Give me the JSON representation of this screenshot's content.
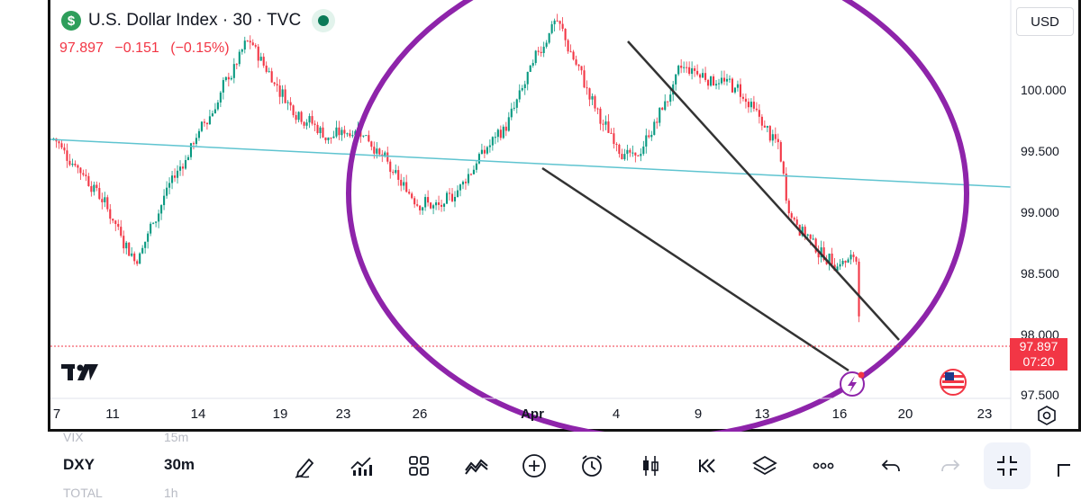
{
  "header": {
    "symbol_icon": "$",
    "title": "U.S. Dollar Index · 30 · TVC",
    "market_status_icon": "live-dot-icon",
    "last_price": "97.897",
    "change": "−0.151",
    "change_pct": "(−0.15%)"
  },
  "currency_button": "USD",
  "y_axis": {
    "ticks": [
      "100.000",
      "99.500",
      "99.000",
      "98.500",
      "98.000",
      "97.500"
    ],
    "ticks_values": [
      100.0,
      99.5,
      99.0,
      98.5,
      98.0,
      97.5
    ]
  },
  "x_axis": {
    "ticks": [
      "7",
      "11",
      "14",
      "19",
      "23",
      "26",
      "Apr",
      "4",
      "9",
      "13",
      "16",
      "20",
      "23"
    ]
  },
  "price_tag": {
    "price": "97.897",
    "countdown": "07:20"
  },
  "colors": {
    "up": "#089981",
    "down": "#f23645",
    "hline": "#5fc4d0",
    "circle": "#8e24aa",
    "trend": "#333333"
  },
  "bottom": {
    "faint_top": [
      "VIX",
      "15m"
    ],
    "symbol": "DXY",
    "timeframe": "30m",
    "faint_bottom": [
      "TOTAL",
      "1h"
    ],
    "tools": [
      "pen-icon",
      "indicators-icon",
      "layout-grid-icon",
      "drawings-icon",
      "add-icon",
      "alert-clock-icon",
      "candle-type-icon",
      "replay-icon",
      "layers-icon",
      "more-icon",
      "undo-icon",
      "redo-icon",
      "fullscreen-icon",
      "crop-icon"
    ]
  },
  "chart_data": {
    "type": "candlestick",
    "series": "U.S. Dollar Index (DXY) 30m",
    "ylim": [
      97.35,
      100.8
    ],
    "last": 97.897,
    "trend_levels": [
      [
        0,
        99.6
      ],
      [
        0.05,
        99.2
      ],
      [
        0.1,
        98.6
      ],
      [
        0.14,
        99.2
      ],
      [
        0.2,
        99.9
      ],
      [
        0.24,
        100.4
      ],
      [
        0.29,
        99.9
      ],
      [
        0.34,
        99.6
      ],
      [
        0.38,
        99.7
      ],
      [
        0.43,
        99.2
      ],
      [
        0.48,
        99.0
      ],
      [
        0.52,
        99.4
      ],
      [
        0.56,
        99.7
      ],
      [
        0.62,
        100.6
      ],
      [
        0.68,
        99.7
      ],
      [
        0.72,
        99.4
      ],
      [
        0.78,
        100.2
      ],
      [
        0.85,
        100.0
      ],
      [
        0.9,
        99.5
      ],
      [
        0.91,
        99.0
      ],
      [
        0.96,
        98.6
      ],
      [
        1.0,
        98.6
      ]
    ],
    "annotations": [
      "horizontal line",
      "circle",
      "descending wedge trendlines"
    ]
  }
}
